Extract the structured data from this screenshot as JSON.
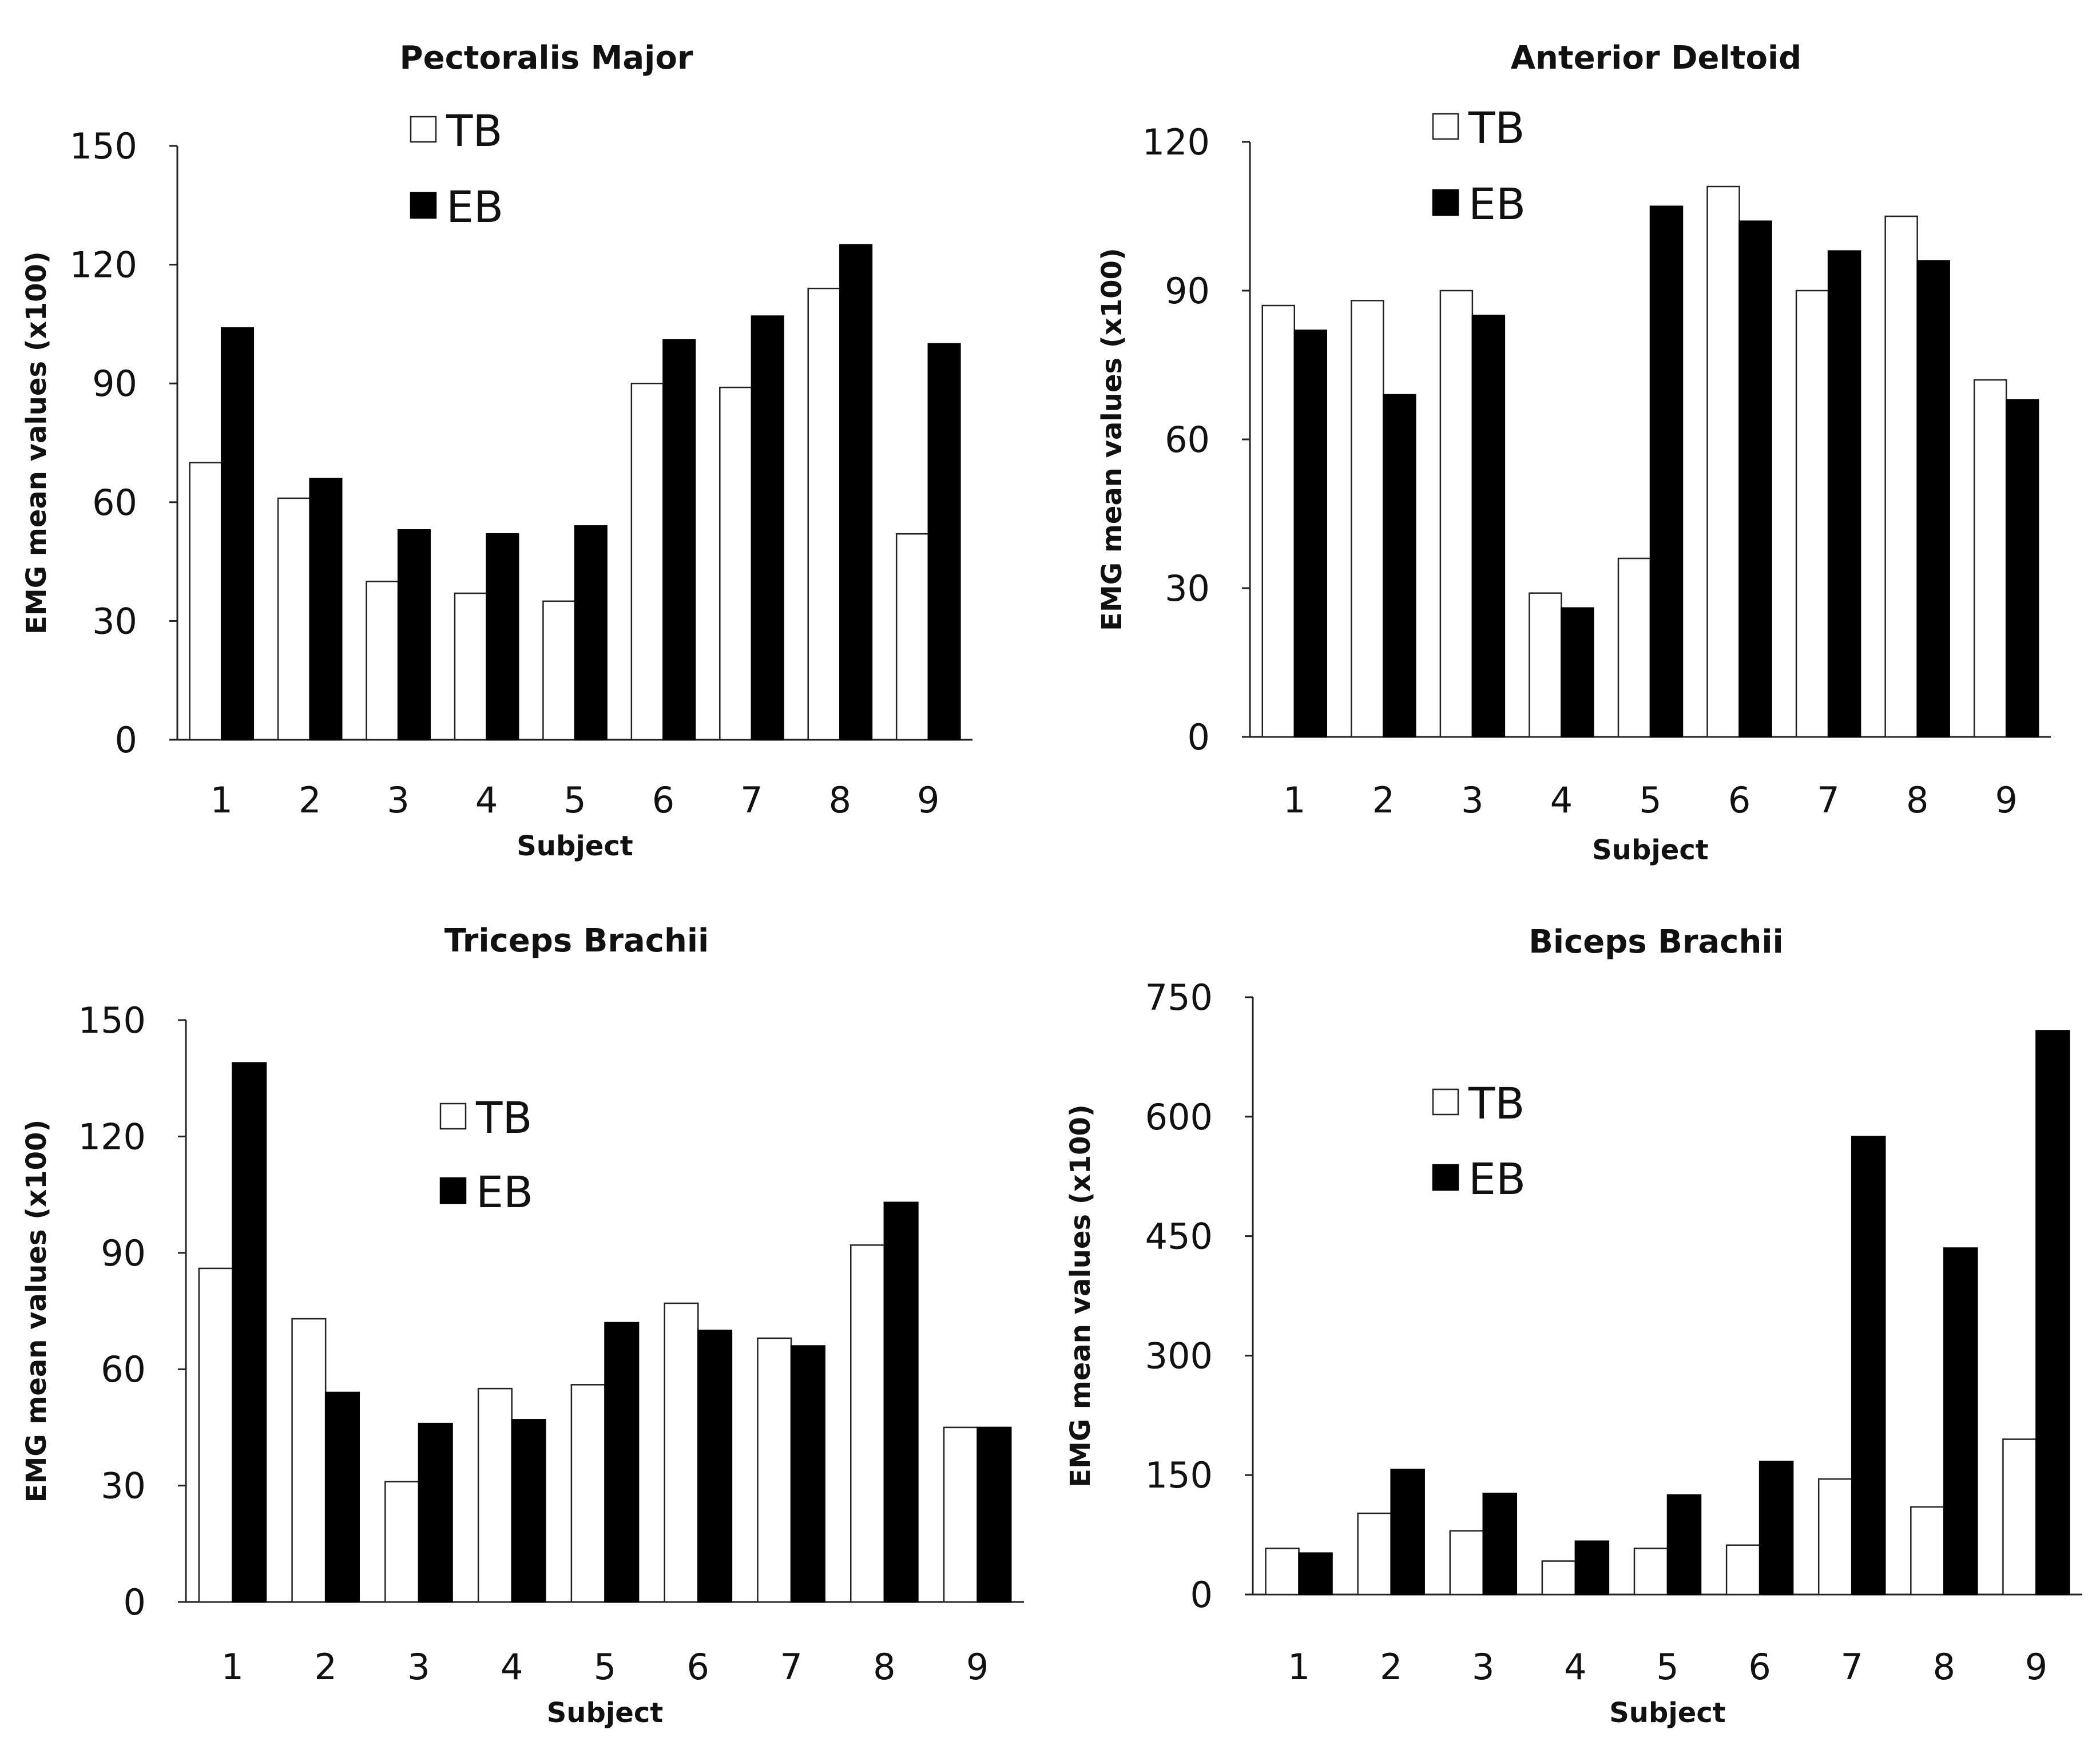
{
  "chart_data": [
    {
      "type": "bar",
      "title": "Pectoralis Major",
      "xlabel": "Subject",
      "ylabel": "EMG mean values (x100)",
      "categories": [
        "1",
        "2",
        "3",
        "4",
        "5",
        "6",
        "7",
        "8",
        "9"
      ],
      "ylim": [
        0,
        150
      ],
      "yticks": [
        0,
        30,
        60,
        90,
        120,
        150
      ],
      "legend_position": "top-left",
      "series": [
        {
          "name": "TB",
          "color": "#ffffff",
          "values": [
            70,
            61,
            40,
            37,
            35,
            90,
            89,
            114,
            52
          ]
        },
        {
          "name": "EB",
          "color": "#000000",
          "values": [
            104,
            66,
            53,
            52,
            54,
            101,
            107,
            125,
            100
          ]
        }
      ]
    },
    {
      "type": "bar",
      "title": "Anterior Deltoid",
      "xlabel": "Subject",
      "ylabel": "EMG mean values (x100)",
      "categories": [
        "1",
        "2",
        "3",
        "4",
        "5",
        "6",
        "7",
        "8",
        "9"
      ],
      "ylim": [
        0,
        120
      ],
      "yticks": [
        0,
        30,
        60,
        90,
        120
      ],
      "legend_position": "top-left",
      "series": [
        {
          "name": "TB",
          "color": "#ffffff",
          "values": [
            87,
            88,
            90,
            29,
            36,
            111,
            90,
            105,
            72
          ]
        },
        {
          "name": "EB",
          "color": "#000000",
          "values": [
            82,
            69,
            85,
            26,
            107,
            104,
            98,
            96,
            68
          ]
        }
      ]
    },
    {
      "type": "bar",
      "title": "Triceps Brachii",
      "xlabel": "Subject",
      "ylabel": "EMG mean values (x100)",
      "categories": [
        "1",
        "2",
        "3",
        "4",
        "5",
        "6",
        "7",
        "8",
        "9"
      ],
      "ylim": [
        0,
        150
      ],
      "yticks": [
        0,
        30,
        60,
        90,
        120,
        150
      ],
      "legend_position": "top-center",
      "series": [
        {
          "name": "TB",
          "color": "#ffffff",
          "values": [
            86,
            73,
            31,
            55,
            56,
            77,
            68,
            92,
            45
          ]
        },
        {
          "name": "EB",
          "color": "#000000",
          "values": [
            139,
            54,
            46,
            47,
            72,
            70,
            66,
            103,
            45
          ]
        }
      ]
    },
    {
      "type": "bar",
      "title": "Biceps Brachii",
      "xlabel": "Subject",
      "ylabel": "EMG mean values (x100)",
      "categories": [
        "1",
        "2",
        "3",
        "4",
        "5",
        "6",
        "7",
        "8",
        "9"
      ],
      "ylim": [
        0,
        750
      ],
      "yticks": [
        0,
        150,
        300,
        450,
        600,
        750
      ],
      "legend_position": "top-left",
      "series": [
        {
          "name": "TB",
          "color": "#ffffff",
          "values": [
            58,
            102,
            80,
            42,
            58,
            62,
            145,
            110,
            195
          ]
        },
        {
          "name": "EB",
          "color": "#000000",
          "values": [
            52,
            157,
            127,
            67,
            125,
            167,
            575,
            435,
            708
          ]
        }
      ]
    }
  ]
}
